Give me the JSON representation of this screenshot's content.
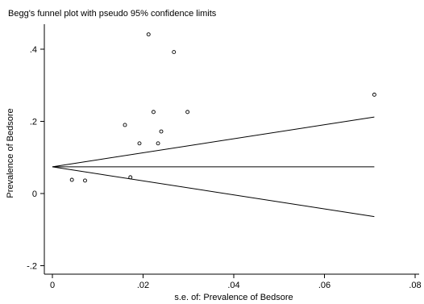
{
  "chart_data": {
    "type": "scatter",
    "title": "Begg's funnel plot with pseudo 95% confidence limits",
    "xlabel": "s.e. of: Prevalence of Bedsore",
    "ylabel": "Prevalence of Bedsore",
    "xlim": [
      0,
      0.08
    ],
    "ylim": [
      -0.2,
      0.45
    ],
    "xticks": [
      {
        "value": 0,
        "label": "0"
      },
      {
        "value": 0.02,
        "label": ".02"
      },
      {
        "value": 0.04,
        "label": ".04"
      },
      {
        "value": 0.06,
        "label": ".06"
      },
      {
        "value": 0.08,
        "label": ".08"
      }
    ],
    "yticks": [
      {
        "value": -0.2,
        "label": "-.2"
      },
      {
        "value": 0,
        "label": "0"
      },
      {
        "value": 0.2,
        "label": ".2"
      },
      {
        "value": 0.4,
        "label": ".4"
      }
    ],
    "points": [
      {
        "x": 0.0043,
        "y": 0.038
      },
      {
        "x": 0.0072,
        "y": 0.036
      },
      {
        "x": 0.016,
        "y": 0.19
      },
      {
        "x": 0.0172,
        "y": 0.045
      },
      {
        "x": 0.0192,
        "y": 0.139
      },
      {
        "x": 0.0212,
        "y": 0.441
      },
      {
        "x": 0.0223,
        "y": 0.226
      },
      {
        "x": 0.0233,
        "y": 0.139
      },
      {
        "x": 0.024,
        "y": 0.172
      },
      {
        "x": 0.0268,
        "y": 0.392
      },
      {
        "x": 0.0298,
        "y": 0.226
      },
      {
        "x": 0.071,
        "y": 0.274
      }
    ],
    "pooled_line": {
      "y": 0.074,
      "x_end": 0.071
    },
    "upper_limit": {
      "x0": 0,
      "y0": 0.074,
      "x1": 0.071,
      "y1": 0.212
    },
    "lower_limit": {
      "x0": 0,
      "y0": 0.074,
      "x1": 0.071,
      "y1": -0.064
    },
    "grid": false,
    "legend": "none",
    "colors": {
      "marks": "#000000",
      "background": "#ffffff"
    }
  }
}
